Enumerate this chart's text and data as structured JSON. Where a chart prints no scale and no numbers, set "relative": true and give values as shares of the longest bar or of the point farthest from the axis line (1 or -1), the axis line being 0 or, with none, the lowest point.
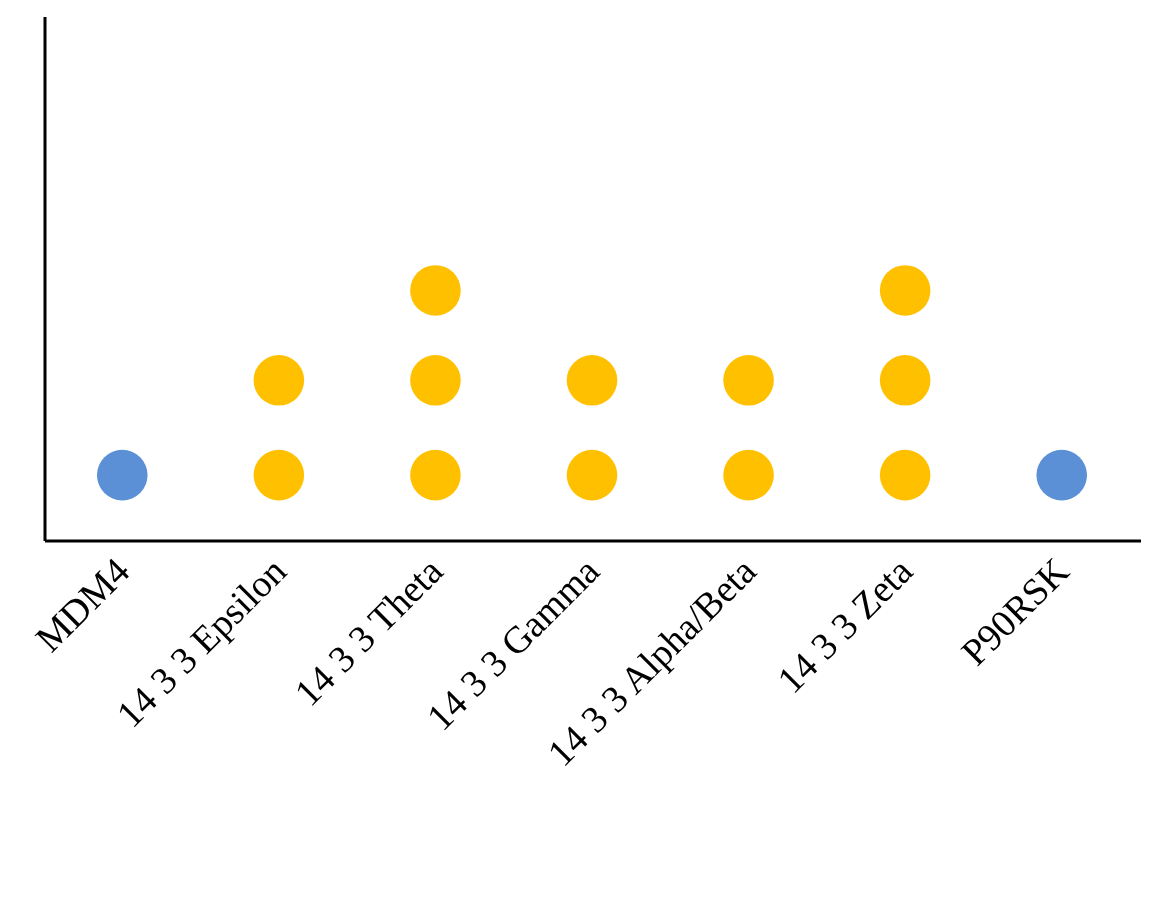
{
  "chart_data": {
    "type": "scatter",
    "relative": true,
    "marker": "circle",
    "categories": [
      "MDM4",
      "14 3 3 Epsilon",
      "14 3 3 Theta",
      "14 3 3 Gamma",
      "14 3 3 Alpha/Beta",
      "14 3 3 Zeta",
      "P90RSK"
    ],
    "series": [
      {
        "color": "#5b8fd6",
        "x": [
          "MDM4",
          "P90RSK"
        ],
        "values": [
          0.26,
          0.26
        ]
      },
      {
        "color": "#ffc000",
        "x": [
          "14 3 3 Epsilon",
          "14 3 3 Epsilon",
          "14 3 3 Theta",
          "14 3 3 Theta",
          "14 3 3 Theta",
          "14 3 3 Gamma",
          "14 3 3 Gamma",
          "14 3 3 Alpha/Beta",
          "14 3 3 Alpha/Beta",
          "14 3 3 Zeta",
          "14 3 3 Zeta",
          "14 3 3 Zeta"
        ],
        "values": [
          0.26,
          0.64,
          0.26,
          0.64,
          1,
          0.26,
          0.64,
          0.26,
          0.64,
          0.26,
          0.64,
          1
        ]
      }
    ]
  }
}
